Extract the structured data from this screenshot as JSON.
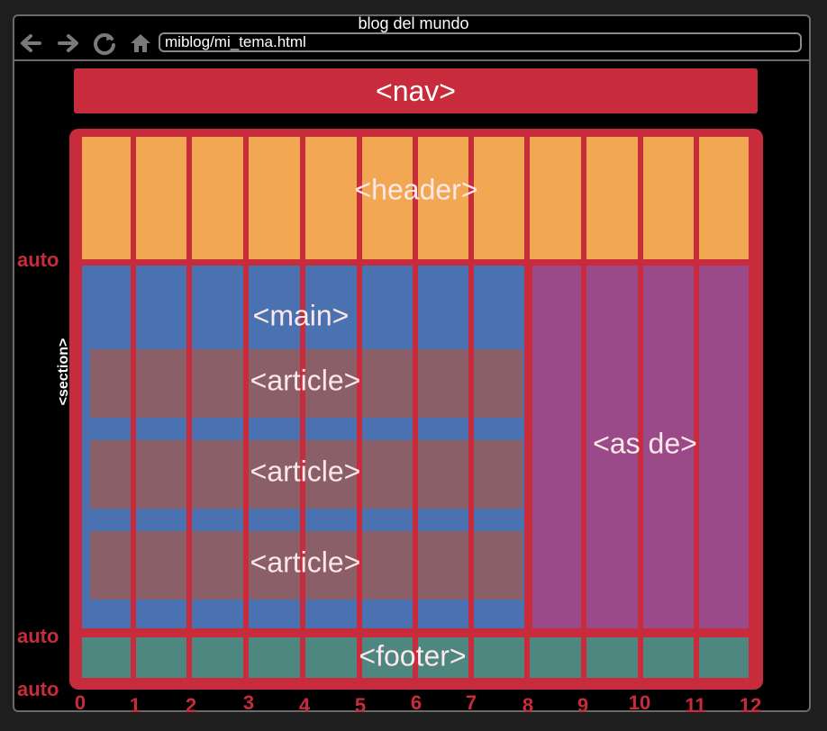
{
  "browser": {
    "tab_title": "blog del mundo",
    "url": "miblog/mi_tema.html",
    "icons": [
      "back-arrow-icon",
      "forward-arrow-icon",
      "reload-icon",
      "home-icon"
    ]
  },
  "layout": {
    "nav": "<nav>",
    "section": "<section>",
    "header": "<header>",
    "main": "<main>",
    "articles": [
      "<article>",
      "<article>",
      "<article>"
    ],
    "aside": "<as de>",
    "footer": "<footer>"
  },
  "grid": {
    "row_sizes": [
      "auto",
      "auto",
      "auto"
    ],
    "column_lines": [
      "0",
      "1",
      "2",
      "3",
      "4",
      "5",
      "6",
      "7",
      "8",
      "9",
      "10",
      "11",
      "12"
    ]
  },
  "colors": {
    "grid_lines": "#c82c3c",
    "header": "#f2a852",
    "main": "#4a72b0",
    "article": "#8a5f67",
    "aside": "#9a4a88",
    "footer": "#4e877f"
  }
}
